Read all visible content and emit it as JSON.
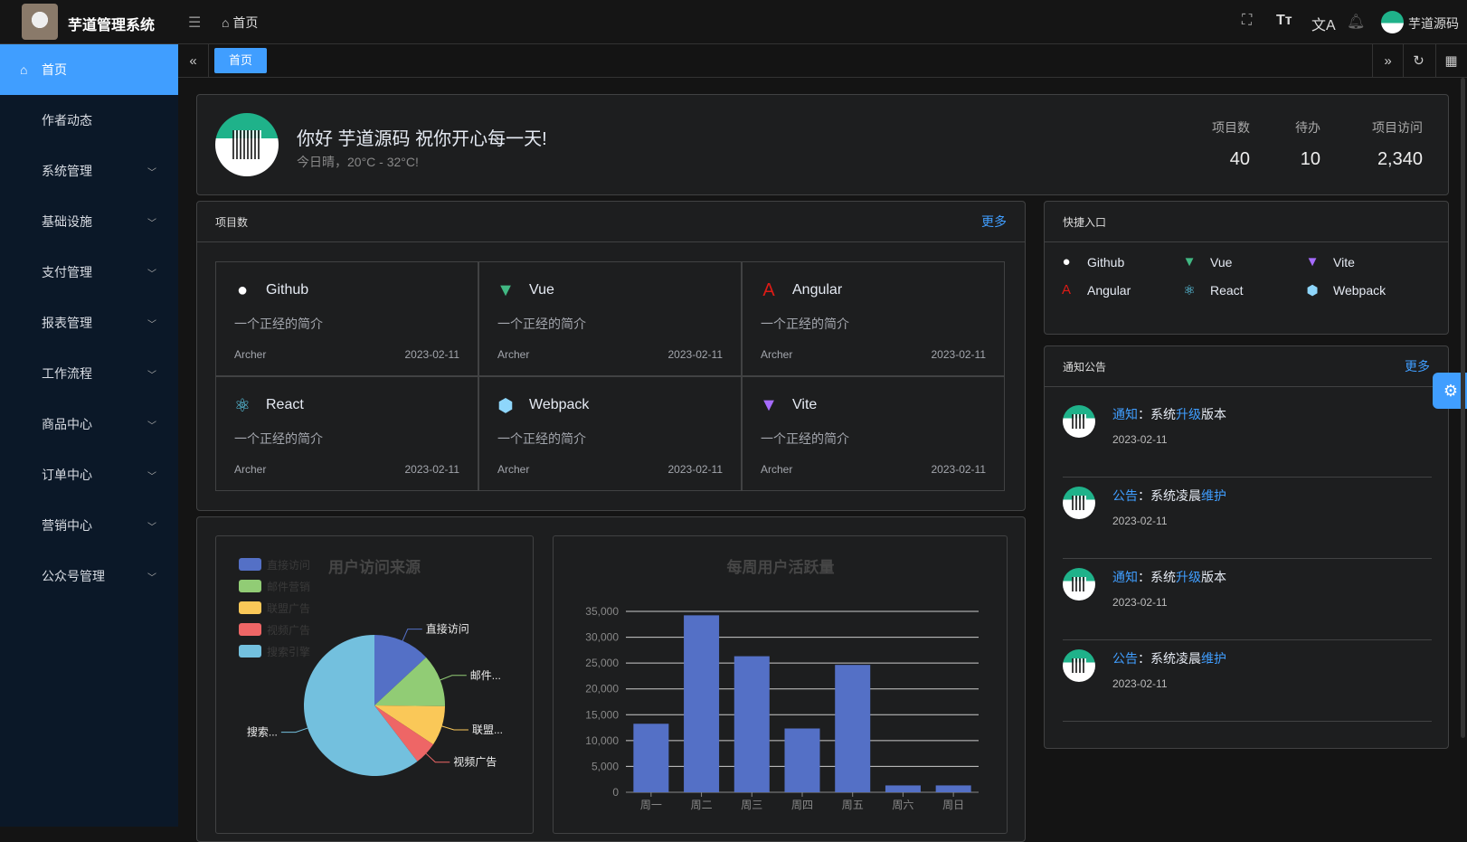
{
  "header": {
    "title": "芋道管理系统",
    "breadcrumb": "首页",
    "user": "芋道源码",
    "icons": [
      "fullscreen-icon",
      "font-size-icon",
      "translate-icon",
      "bell-icon"
    ]
  },
  "sidebar": {
    "items": [
      {
        "label": "首页",
        "active": true
      },
      {
        "label": "作者动态"
      },
      {
        "label": "系统管理",
        "expandable": true
      },
      {
        "label": "基础设施",
        "expandable": true
      },
      {
        "label": "支付管理",
        "expandable": true
      },
      {
        "label": "报表管理",
        "expandable": true
      },
      {
        "label": "工作流程",
        "expandable": true
      },
      {
        "label": "商品中心",
        "expandable": true
      },
      {
        "label": "订单中心",
        "expandable": true
      },
      {
        "label": "营销中心",
        "expandable": true
      },
      {
        "label": "公众号管理",
        "expandable": true
      }
    ]
  },
  "tabs": [
    {
      "label": "首页",
      "active": true
    }
  ],
  "welcome": {
    "greeting": "你好 芋道源码 祝你开心每一天!",
    "weather": "今日晴，20°C - 32°C!",
    "stats": [
      {
        "label": "项目数",
        "value": "40"
      },
      {
        "label": "待办",
        "value": "10"
      },
      {
        "label": "项目访问",
        "value": "2,340"
      }
    ]
  },
  "projects": {
    "title": "项目数",
    "more": "更多",
    "items": [
      {
        "name": "Github",
        "icon": "github-icon",
        "desc": "一个正经的简介",
        "author": "Archer",
        "date": "2023-02-11"
      },
      {
        "name": "Vue",
        "icon": "vue-icon",
        "desc": "一个正经的简介",
        "author": "Archer",
        "date": "2023-02-11"
      },
      {
        "name": "Angular",
        "icon": "angular-icon",
        "desc": "一个正经的简介",
        "author": "Archer",
        "date": "2023-02-11"
      },
      {
        "name": "React",
        "icon": "react-icon",
        "desc": "一个正经的简介",
        "author": "Archer",
        "date": "2023-02-11"
      },
      {
        "name": "Webpack",
        "icon": "webpack-icon",
        "desc": "一个正经的简介",
        "author": "Archer",
        "date": "2023-02-11"
      },
      {
        "name": "Vite",
        "icon": "vite-icon",
        "desc": "一个正经的简介",
        "author": "Archer",
        "date": "2023-02-11"
      }
    ]
  },
  "shortcuts": {
    "title": "快捷入口",
    "items": [
      {
        "name": "Github"
      },
      {
        "name": "Vue"
      },
      {
        "name": "Vite"
      },
      {
        "name": "Angular"
      },
      {
        "name": "React"
      },
      {
        "name": "Webpack"
      }
    ]
  },
  "notices": {
    "title": "通知公告",
    "more": "更多",
    "items": [
      {
        "type": "通知",
        "sep": "：",
        "a": "系统",
        "b": "升级",
        "c": "版本",
        "date": "2023-02-11"
      },
      {
        "type": "公告",
        "sep": "：",
        "a": "系统凌晨",
        "b": "维护",
        "c": "",
        "date": "2023-02-11"
      },
      {
        "type": "通知",
        "sep": "：",
        "a": "系统",
        "b": "升级",
        "c": "版本",
        "date": "2023-02-11"
      },
      {
        "type": "公告",
        "sep": "：",
        "a": "系统凌晨",
        "b": "维护",
        "c": "",
        "date": "2023-02-11"
      }
    ]
  },
  "chart_data": [
    {
      "type": "pie",
      "title": "用户访问来源",
      "legend": "top-left",
      "categories": [
        "直接访问",
        "邮件营销",
        "联盟广告",
        "视频广告",
        "搜索引擎"
      ],
      "labels": [
        "直接访问",
        "邮件...",
        "联盟...",
        "视频广告",
        "搜索..."
      ],
      "values": [
        335,
        310,
        234,
        135,
        1548
      ],
      "colors": [
        "#5470c6",
        "#91cc75",
        "#fac858",
        "#ee6666",
        "#73c0de"
      ]
    },
    {
      "type": "bar",
      "title": "每周用户活跃量",
      "categories": [
        "周一",
        "周二",
        "周三",
        "周四",
        "周五",
        "周六",
        "周日"
      ],
      "values": [
        13253,
        34235,
        26321,
        12340,
        24643,
        1322,
        1324
      ],
      "ylim": [
        0,
        35000
      ],
      "yticks": [
        "0",
        "5,000",
        "10,000",
        "15,000",
        "20,000",
        "25,000",
        "30,000",
        "35,000"
      ],
      "color": "#5470c6",
      "grid": true
    }
  ],
  "colors": {
    "accent": "#409eff",
    "sidebar_bg": "#0b1828",
    "card_bg": "#1d1e1f"
  }
}
